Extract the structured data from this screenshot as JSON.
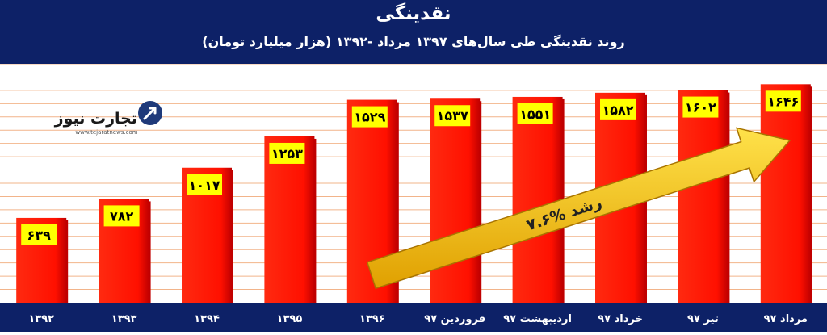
{
  "chart_data": {
    "type": "bar",
    "title": "نقدینگی",
    "subtitle": "روند نقدینگی طی سال‌های ۱۳۹۷ مرداد -۱۳۹۲ (هزار میلیارد تومان)",
    "categories": [
      "۱۳۹۲",
      "۱۳۹۳",
      "۱۳۹۴",
      "۱۳۹۵",
      "۱۳۹۶",
      "فروردین ۹۷",
      "اردیبهشت ۹۷",
      "خرداد ۹۷",
      "تیر ۹۷",
      "مرداد ۹۷"
    ],
    "values": [
      639,
      782,
      1017,
      1253,
      1529,
      1537,
      1551,
      1582,
      1602,
      1646
    ],
    "value_labels": [
      "۶۳۹",
      "۷۸۲",
      "۱۰۱۷",
      "۱۲۵۳",
      "۱۵۲۹",
      "۱۵۳۷",
      "۱۵۵۱",
      "۱۵۸۲",
      "۱۶۰۲",
      "۱۶۴۶"
    ],
    "ylim": [
      0,
      1800
    ],
    "grid": true,
    "annotation": "۷.۶% رشد",
    "colors": {
      "bar": "#ff1a00",
      "bar_dark": "#c00000",
      "label_bg": "#ffff00",
      "header_bg": "#0d2167",
      "grid": "#f2b48a",
      "arrow": "#ffc000"
    }
  },
  "logo": {
    "name": "تجارت نیوز",
    "url_text": "www.tejaratnews.com",
    "icon": "tejarat-arrow-icon"
  }
}
